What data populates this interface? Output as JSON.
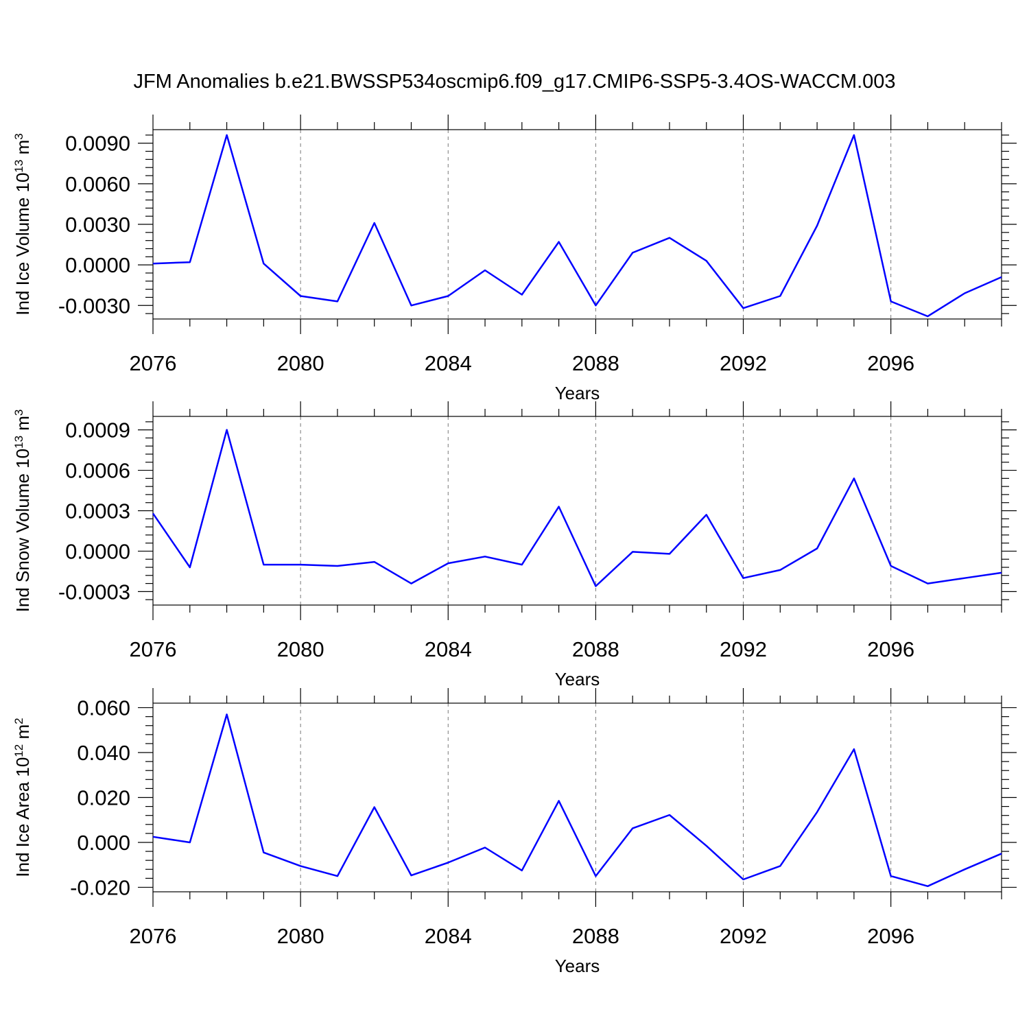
{
  "title": "JFM Anomalies b.e21.BWSSP534oscmip6.f09_g17.CMIP6-SSP5-3.4OS-WACCM.003",
  "line_color": "#0000ff",
  "chart_data": [
    {
      "type": "line",
      "ylabel": {
        "main": "Ind Ice Volume 10",
        "exp": "13",
        "unit": " m",
        "unit_exp": "3"
      },
      "xlabel": "Years",
      "xlim": [
        2076,
        2099
      ],
      "ylim": [
        -0.004,
        0.01
      ],
      "x_ticks": [
        2076,
        2080,
        2084,
        2088,
        2092,
        2096
      ],
      "y_ticks": [
        -0.003,
        0,
        0.003,
        0.006,
        0.009
      ],
      "y_tick_labels": [
        "-0.0030",
        "0.0000",
        "0.0030",
        "0.0060",
        "0.0090"
      ],
      "grid": "vertical dashed at major x ticks",
      "x": [
        2076,
        2077,
        2078,
        2079,
        2080,
        2081,
        2082,
        2083,
        2084,
        2085,
        2086,
        2087,
        2088,
        2089,
        2090,
        2091,
        2092,
        2093,
        2094,
        2095,
        2096,
        2097,
        2098,
        2099
      ],
      "values": [
        0.0001,
        0.0002,
        0.0096,
        0.0001,
        -0.0023,
        -0.0027,
        0.0031,
        -0.003,
        -0.0023,
        -0.0004,
        -0.0022,
        0.0017,
        -0.003,
        0.0009,
        0.002,
        0.0003,
        -0.0032,
        -0.0023,
        0.0029,
        0.0096,
        -0.0027,
        -0.0038,
        -0.0021,
        -0.0009
      ]
    },
    {
      "type": "line",
      "ylabel": {
        "main": "Ind Snow Volume 10",
        "exp": "13",
        "unit": " m",
        "unit_exp": "3"
      },
      "xlabel": "Years",
      "xlim": [
        2076,
        2099
      ],
      "ylim": [
        -0.0004,
        0.001
      ],
      "x_ticks": [
        2076,
        2080,
        2084,
        2088,
        2092,
        2096
      ],
      "y_ticks": [
        -0.0003,
        0,
        0.0003,
        0.0006,
        0.0009
      ],
      "y_tick_labels": [
        "-0.0003",
        "0.0000",
        "0.0003",
        "0.0006",
        "0.0009"
      ],
      "grid": "vertical dashed at major x ticks",
      "x": [
        2076,
        2077,
        2078,
        2079,
        2080,
        2081,
        2082,
        2083,
        2084,
        2085,
        2086,
        2087,
        2088,
        2089,
        2090,
        2091,
        2092,
        2093,
        2094,
        2095,
        2096,
        2097,
        2098,
        2099
      ],
      "values": [
        0.00028,
        -0.00012,
        0.0009,
        -0.0001,
        -0.0001,
        -0.00011,
        -8e-05,
        -0.00024,
        -9e-05,
        -4e-05,
        -0.0001,
        0.00033,
        -0.00026,
        -5e-06,
        -2e-05,
        0.00027,
        -0.0002,
        -0.00014,
        2e-05,
        0.00054,
        -0.00011,
        -0.00024,
        -0.0002,
        -0.00016
      ]
    },
    {
      "type": "line",
      "ylabel": {
        "main": "Ind Ice Area 10",
        "exp": "12",
        "unit": " m",
        "unit_exp": "2"
      },
      "xlabel": "Years",
      "xlim": [
        2076,
        2099
      ],
      "ylim": [
        -0.022,
        0.062
      ],
      "x_ticks": [
        2076,
        2080,
        2084,
        2088,
        2092,
        2096
      ],
      "y_ticks": [
        -0.02,
        0,
        0.02,
        0.04,
        0.06
      ],
      "y_tick_labels": [
        "-0.020",
        "0.000",
        "0.020",
        "0.040",
        "0.060"
      ],
      "grid": "vertical dashed at major x ticks",
      "x": [
        2076,
        2077,
        2078,
        2079,
        2080,
        2081,
        2082,
        2083,
        2084,
        2085,
        2086,
        2087,
        2088,
        2089,
        2090,
        2091,
        2092,
        2093,
        2094,
        2095,
        2096,
        2097,
        2098,
        2099
      ],
      "values": [
        0.0025,
        0.0,
        0.057,
        -0.0045,
        -0.0105,
        -0.015,
        0.0157,
        -0.0147,
        -0.009,
        -0.0023,
        -0.0125,
        0.0185,
        -0.015,
        0.0063,
        0.0122,
        -0.0015,
        -0.0165,
        -0.0105,
        0.0135,
        0.0415,
        -0.015,
        -0.0195,
        -0.012,
        -0.005
      ]
    }
  ]
}
